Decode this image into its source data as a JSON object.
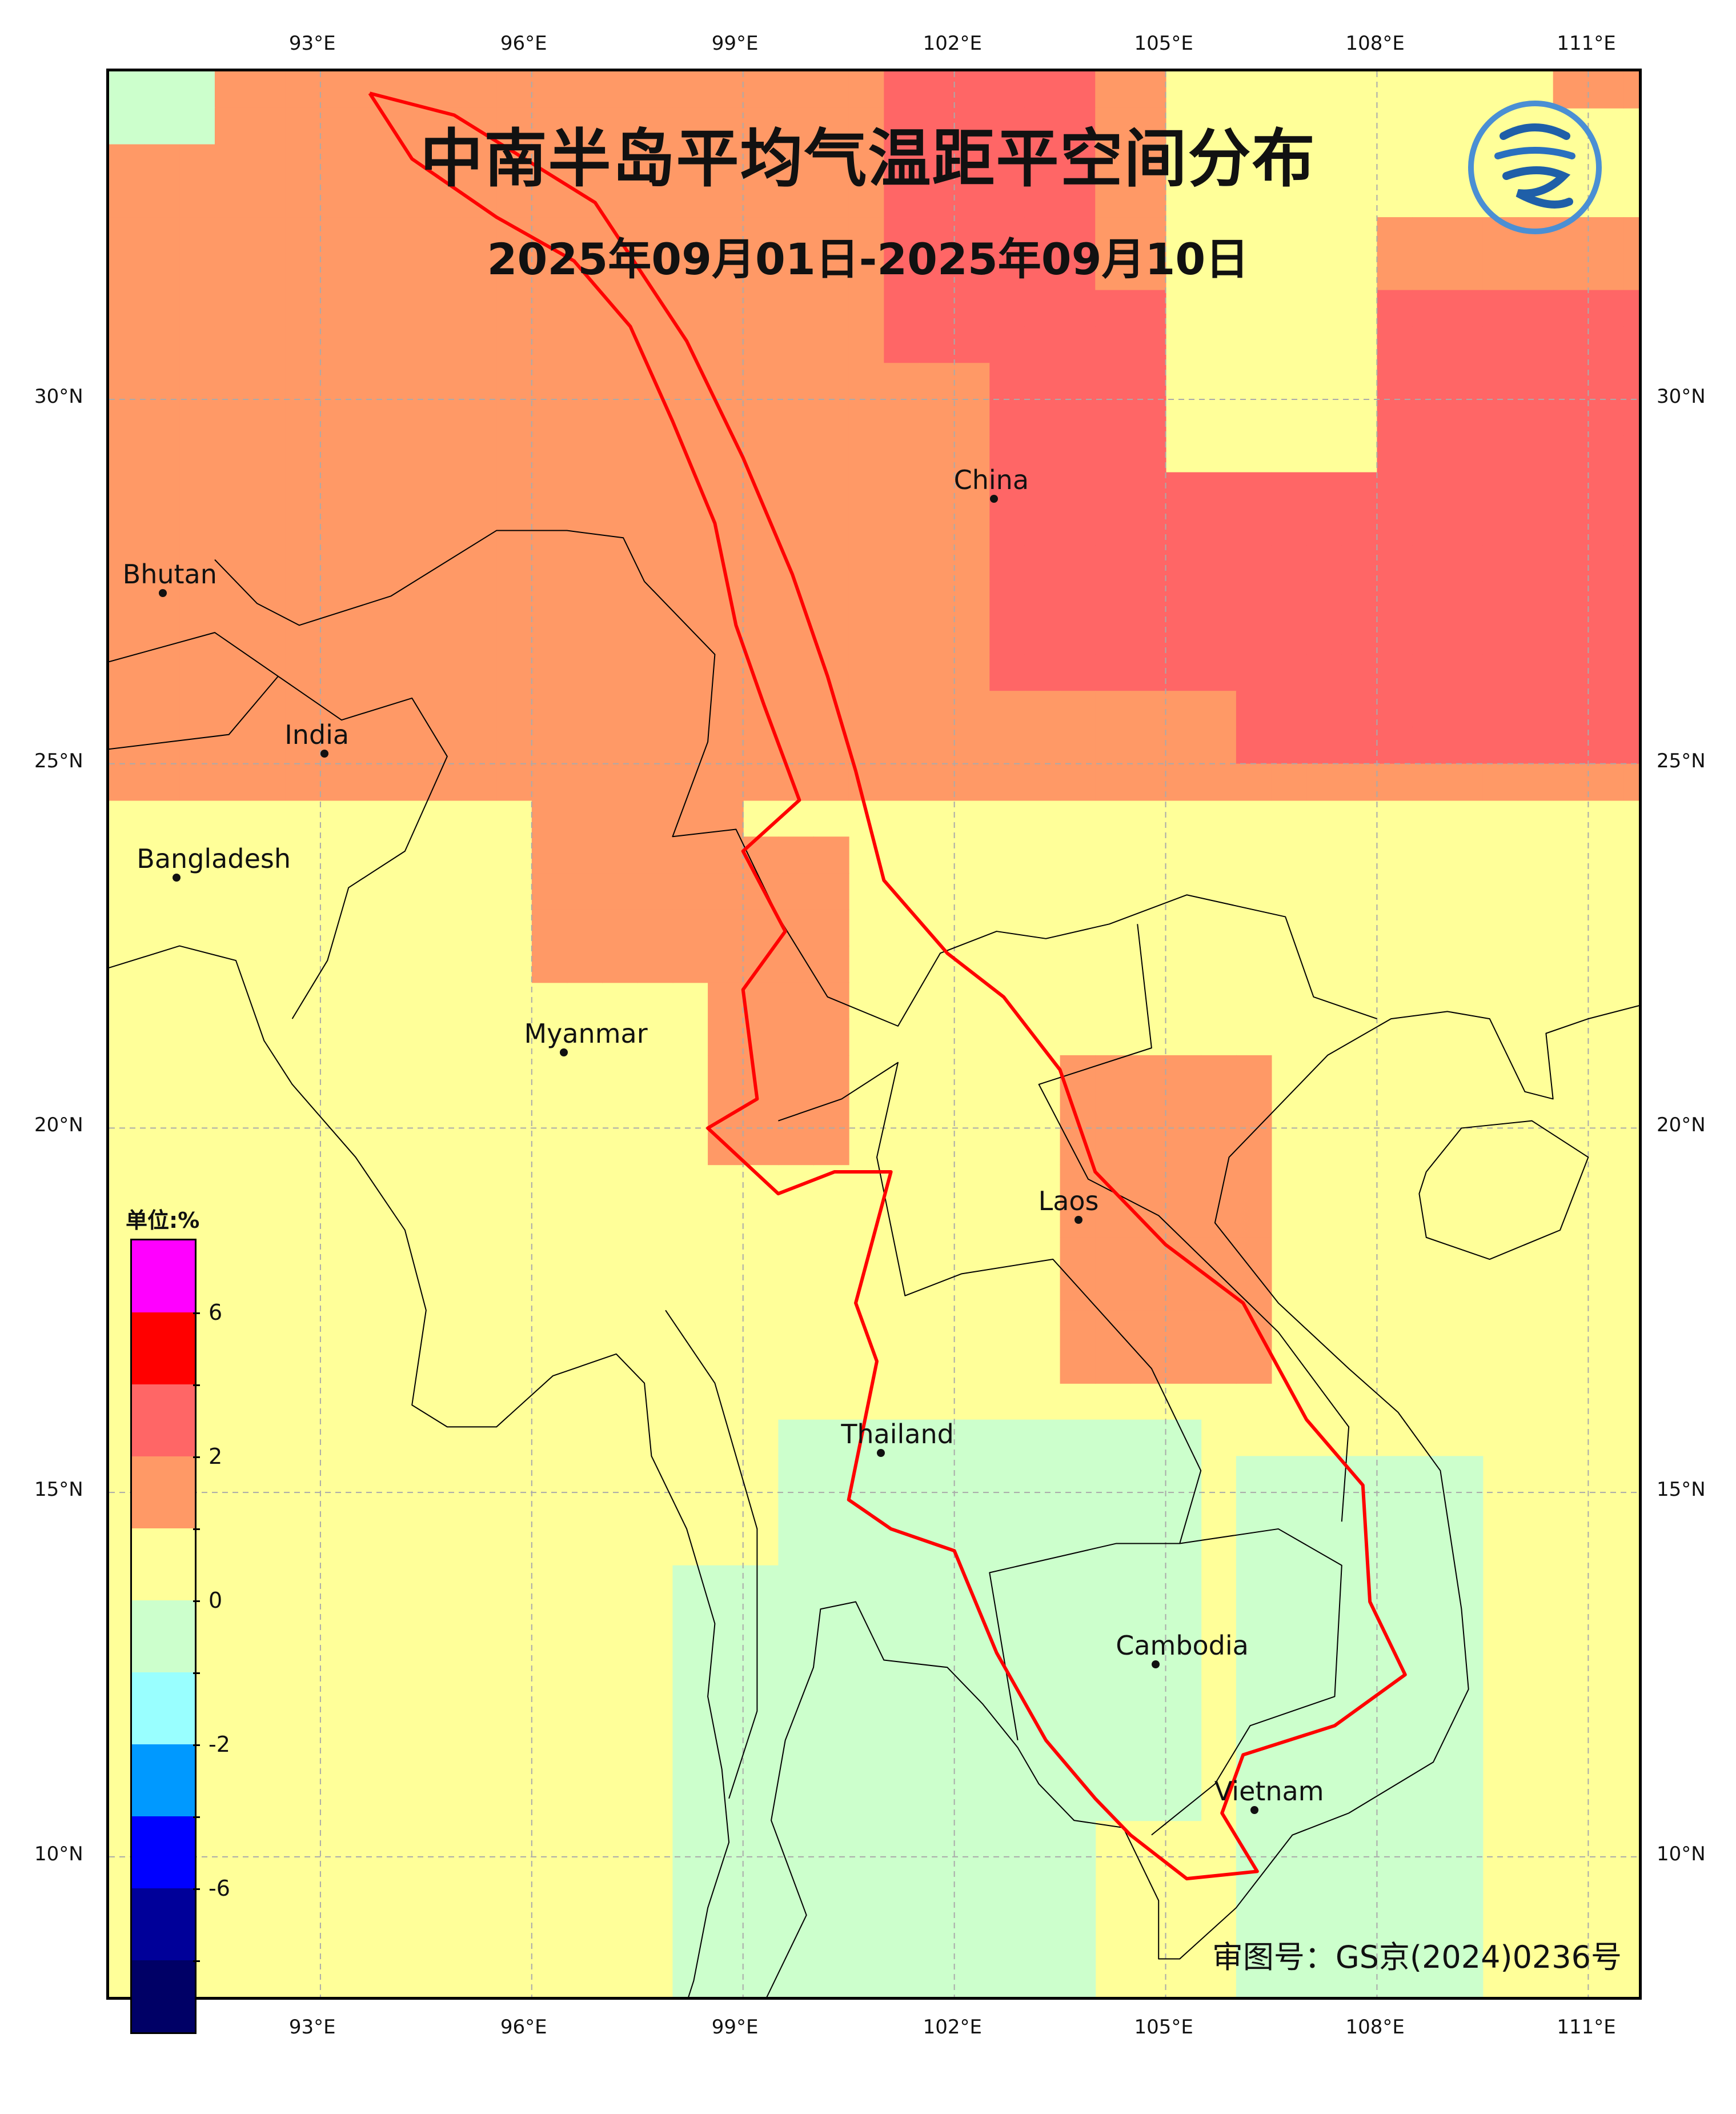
{
  "title": "中南半岛平均气温距平空间分布",
  "subtitle": "2025年09月01日-2025年09月10日",
  "approval_number": "审图号：GS京(2024)0236号",
  "lon_ticks": [
    "93°E",
    "96°E",
    "99°E",
    "102°E",
    "105°E",
    "108°E",
    "111°E"
  ],
  "lat_ticks": [
    "30°N",
    "25°N",
    "20°N",
    "15°N",
    "10°N"
  ],
  "cities": [
    {
      "name": "China",
      "lon": 102.6,
      "lat": 28.6
    },
    {
      "name": "Bhutan",
      "lon": 90.8,
      "lat": 27.3
    },
    {
      "name": "India",
      "lon": 93.1,
      "lat": 25.1
    },
    {
      "name": "Bangladesh",
      "lon": 91.0,
      "lat": 23.4
    },
    {
      "name": "Myanmar",
      "lon": 96.5,
      "lat": 21.0
    },
    {
      "name": "Laos",
      "lon": 103.8,
      "lat": 18.7
    },
    {
      "name": "Thailand",
      "lon": 101.0,
      "lat": 15.5
    },
    {
      "name": "Cambodia",
      "lon": 104.9,
      "lat": 12.6
    },
    {
      "name": "Vietnam",
      "lon": 106.3,
      "lat": 10.6
    }
  ],
  "legend": {
    "unit": "单位:%",
    "colors": [
      "#ff00ff",
      "#ff0000",
      "#ff6666",
      "#ff9966",
      "#ffff99",
      "#ccffcc",
      "#99ffff",
      "#0099ff",
      "#0000ff",
      "#000099",
      "#000066"
    ],
    "labels": [
      "6",
      "2",
      "0",
      "-2",
      "-6"
    ]
  },
  "palette": {
    "warm_strong": "#ff6666",
    "warm": "#ff9966",
    "near_zero_warm": "#ffff99",
    "near_zero_cool": "#ccffcc",
    "cool": "#99ffff",
    "basin_boundary": "#ff0000",
    "country_border": "#000000",
    "grid_line": "#aaaaaa"
  },
  "map_extent": {
    "lon_min": 90.0,
    "lon_max": 111.8,
    "lat_min": 8.0,
    "lat_max": 34.5
  }
}
